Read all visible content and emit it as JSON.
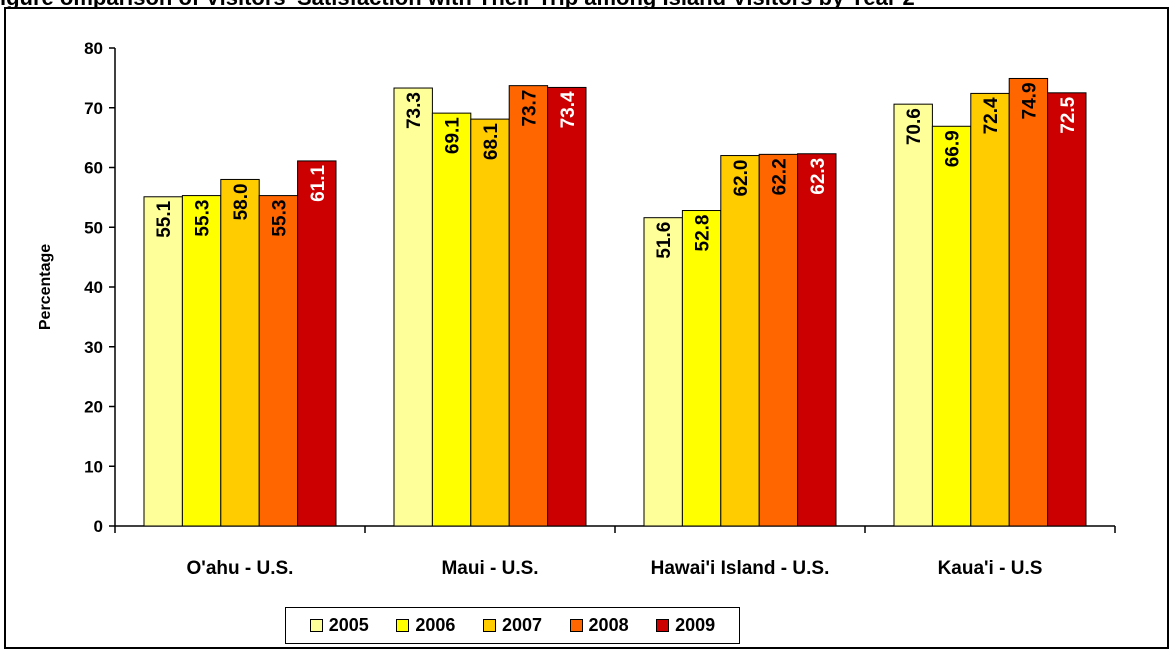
{
  "title_partial": "igure     omparison of Visitors' Satisfaction with Their Trip among Island Visitors by Year 2",
  "chart_data": {
    "type": "bar",
    "title": "",
    "xlabel": "",
    "ylabel": "Percentage",
    "ylim": [
      0,
      80
    ],
    "yticks": [
      0,
      10,
      20,
      30,
      40,
      50,
      60,
      70,
      80
    ],
    "grid": false,
    "legend_placement": "bottom",
    "categories": [
      "O'ahu - U.S.",
      "Maui - U.S.",
      "Hawai'i Island - U.S.",
      "Kaua'i - U.S"
    ],
    "series": [
      {
        "name": "2005",
        "color": "#FFFF99",
        "label_color": "#000000",
        "values": [
          55.1,
          73.3,
          51.6,
          70.6
        ]
      },
      {
        "name": "2006",
        "color": "#FFFF00",
        "label_color": "#000000",
        "values": [
          55.3,
          69.1,
          52.8,
          66.9
        ]
      },
      {
        "name": "2007",
        "color": "#FFCC00",
        "label_color": "#000000",
        "values": [
          58.0,
          68.1,
          62.0,
          72.4
        ]
      },
      {
        "name": "2008",
        "color": "#FF6600",
        "label_color": "#000000",
        "values": [
          55.3,
          73.7,
          62.2,
          74.9
        ]
      },
      {
        "name": "2009",
        "color": "#CC0000",
        "label_color": "#FFFFFF",
        "values": [
          61.1,
          73.4,
          62.3,
          72.5
        ]
      }
    ]
  }
}
